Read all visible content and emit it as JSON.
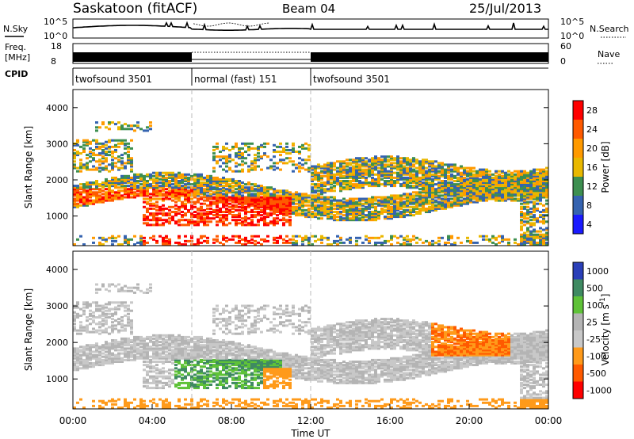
{
  "header": {
    "title": "Saskatoon (fitACF)",
    "beam": "Beam 04",
    "date": "25/Jul/2013"
  },
  "nsky_panel": {
    "left_label": "N.Sky",
    "left_ticks": [
      "10^5",
      "10^0"
    ],
    "right_ticks": [
      "10^5",
      "10^0"
    ],
    "right_label": "N.Search"
  },
  "freq_panel": {
    "left_label_line1": "Freq.",
    "left_label_line2": "[MHz]",
    "left_ticks": [
      "18",
      "8"
    ],
    "right_ticks": [
      "60",
      "0"
    ],
    "right_label": "Nave"
  },
  "cpid_panel": {
    "label": "CPID",
    "segments": [
      {
        "name": "twofsound 3501",
        "start_hour": 0,
        "end_hour": 6
      },
      {
        "name": "normal (fast) 151",
        "start_hour": 6,
        "end_hour": 12
      },
      {
        "name": "twofsound 3501",
        "start_hour": 12,
        "end_hour": 24
      }
    ]
  },
  "power_colorbar": {
    "label": "Power [dB]",
    "ticks": [
      "28",
      "24",
      "20",
      "16",
      "12",
      "8",
      "4"
    ],
    "colors": [
      "#ff0000",
      "#ff5a00",
      "#ff9a00",
      "#e9b800",
      "#3d8f50",
      "#3563b0",
      "#1a1aff"
    ]
  },
  "velocity_colorbar": {
    "label": "Velocity [m s",
    "label_superscript": "-1",
    "label_end": "]",
    "ticks": [
      "1000",
      "500",
      "100",
      "25",
      "-25",
      "-100",
      "-500",
      "-1000"
    ],
    "colors": [
      "#2a3fb8",
      "#3f8a62",
      "#5fc238",
      "#b4b4b4",
      "#c8c8c8",
      "#ff9a1a",
      "#ff5a00",
      "#ff0000"
    ]
  },
  "chart_data": [
    {
      "type": "heatmap",
      "title": "",
      "ylabel": "Slant Range [km]",
      "xlabel": "",
      "ylim": [
        180,
        4500
      ],
      "y_ticks": [
        "4000",
        "3000",
        "2000",
        "1000"
      ],
      "x_range_hours": [
        0,
        24
      ],
      "quantity": "Power [dB]",
      "value_range": [
        0,
        30
      ]
    },
    {
      "type": "heatmap",
      "title": "",
      "ylabel": "Slant Range [km]",
      "xlabel": "Time UT",
      "ylim": [
        180,
        4500
      ],
      "y_ticks": [
        "4000",
        "3000",
        "2000",
        "1000"
      ],
      "x_ticks": [
        "00:00",
        "04:00",
        "08:00",
        "12:00",
        "16:00",
        "20:00",
        "00:00"
      ],
      "x_range_hours": [
        0,
        24
      ],
      "quantity": "Velocity [m s-1]",
      "value_range": [
        -1000,
        1000
      ]
    }
  ]
}
